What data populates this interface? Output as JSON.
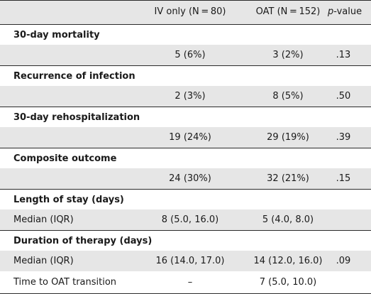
{
  "header": {
    "col1": "IV only (N = 80)",
    "col2": "OAT (N = 152)",
    "col3": "p",
    "col3_suffix": "-value"
  },
  "rows": [
    {
      "label": "30-day mortality",
      "type": "section"
    },
    {
      "label": "",
      "iv": "5 (6%)",
      "oat": "3 (2%)",
      "p": ".13",
      "type": "data"
    },
    {
      "label": "Recurrence of infection",
      "type": "section"
    },
    {
      "label": "",
      "iv": "2 (3%)",
      "oat": "8 (5%)",
      "p": ".50",
      "type": "data"
    },
    {
      "label": "30-day rehospitalization",
      "type": "section"
    },
    {
      "label": "",
      "iv": "19 (24%)",
      "oat": "29 (19%)",
      "p": ".39",
      "type": "data"
    },
    {
      "label": "Composite outcome",
      "type": "section"
    },
    {
      "label": "",
      "iv": "24 (30%)",
      "oat": "32 (21%)",
      "p": ".15",
      "type": "data"
    },
    {
      "label": "Length of stay (days)",
      "type": "section"
    },
    {
      "label": "Median (IQR)",
      "iv": "8 (5.0, 16.0)",
      "oat": "5 (4.0, 8.0)",
      "p": "",
      "type": "data"
    },
    {
      "label": "Duration of therapy (days)",
      "type": "section"
    },
    {
      "label": "Median (IQR)",
      "iv": "16 (14.0, 17.0)",
      "oat": "14 (12.0, 16.0)",
      "p": ".09",
      "type": "data"
    },
    {
      "label": "Time to OAT transition",
      "iv": "–",
      "oat": "7 (5.0, 10.0)",
      "p": "",
      "type": "data"
    }
  ]
}
